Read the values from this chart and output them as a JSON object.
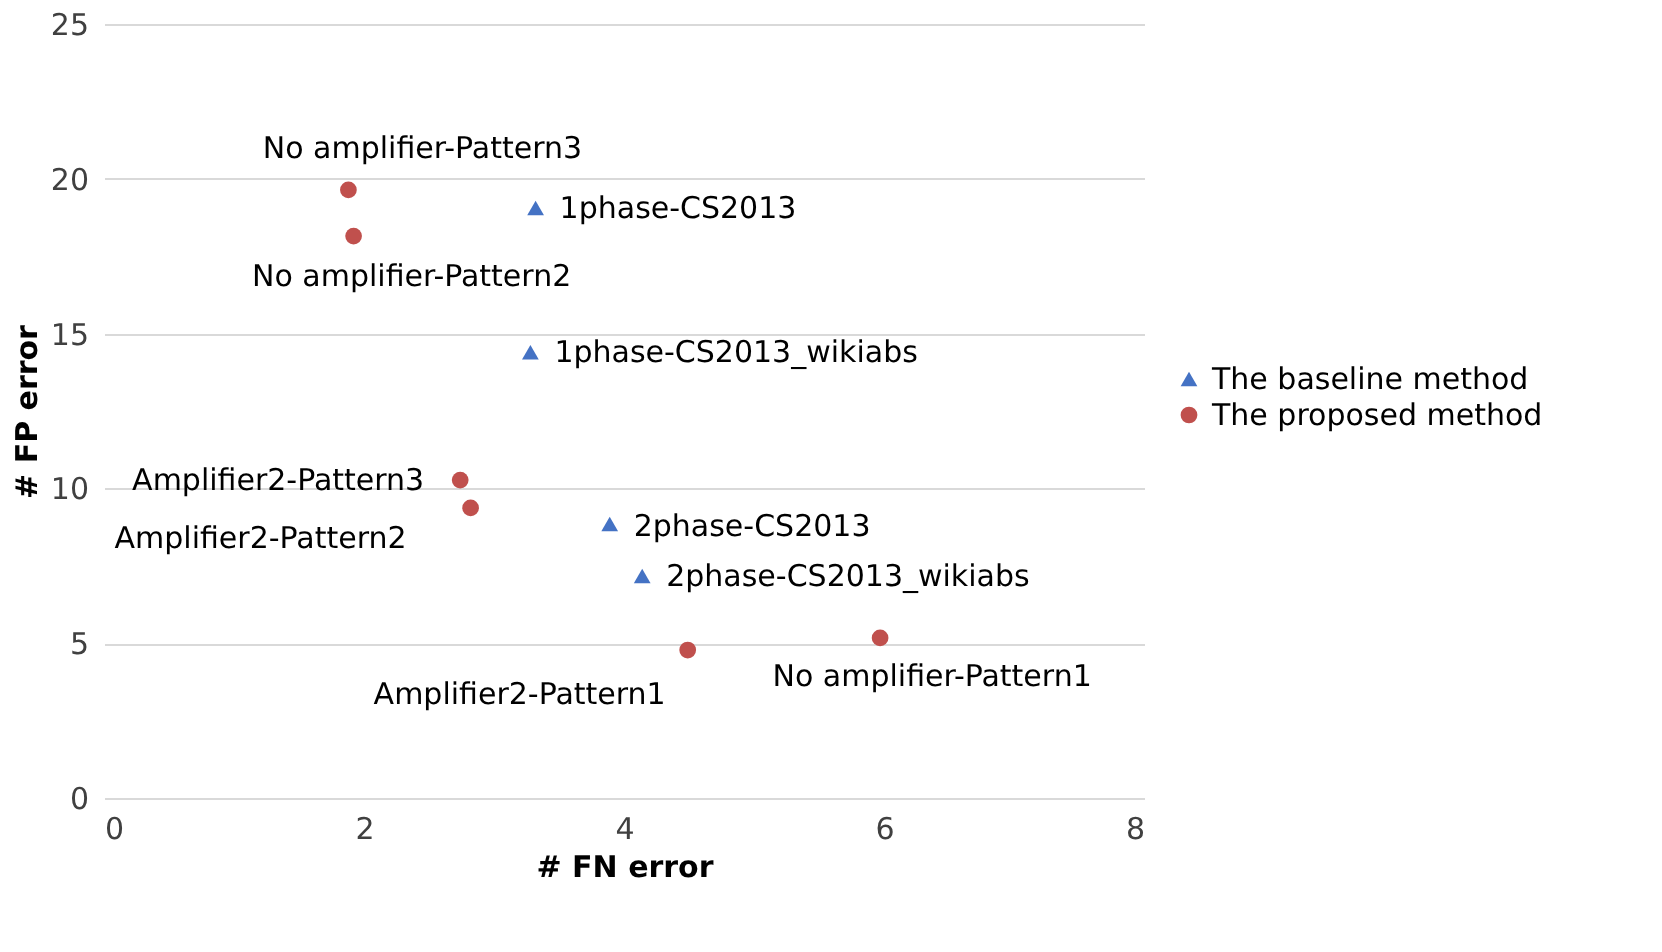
{
  "chart_data": {
    "type": "scatter",
    "xlabel": "# FN error",
    "ylabel": "# FP error",
    "xlim": [
      0,
      8
    ],
    "xticks": [
      0,
      2,
      4,
      6,
      8
    ],
    "ylim": [
      0,
      25
    ],
    "yticks": [
      0,
      5,
      10,
      15,
      20,
      25
    ],
    "grid": "y",
    "legend": "right",
    "series": [
      {
        "name": "The baseline method",
        "color": "#4472c4",
        "marker": "triangle",
        "x": [
          3.32,
          3.28,
          3.89,
          4.14
        ],
        "values": [
          19.06,
          14.4,
          8.85,
          7.17
        ]
      },
      {
        "name": "The proposed method",
        "color": "#c0504d",
        "marker": "circle",
        "x": [
          1.88,
          1.92,
          2.74,
          2.82,
          4.49,
          5.97
        ],
        "values": [
          19.64,
          18.15,
          10.27,
          9.37,
          4.78,
          5.17
        ]
      }
    ],
    "annotations": [
      {
        "text": "No amplifier-Pattern3",
        "x": 1.88,
        "y": 19.64
      },
      {
        "text": "1phase-CS2013",
        "x": 3.32,
        "y": 19.06
      },
      {
        "text": "No amplifier-Pattern2",
        "x": 1.92,
        "y": 18.15
      },
      {
        "text": "1phase-CS2013_wikiabs",
        "x": 3.28,
        "y": 14.4
      },
      {
        "text": "Amplifier2-Pattern3",
        "x": 2.74,
        "y": 10.27
      },
      {
        "text": "Amplifier2-Pattern2",
        "x": 2.82,
        "y": 9.37
      },
      {
        "text": "2phase-CS2013",
        "x": 3.89,
        "y": 8.85
      },
      {
        "text": "2phase-CS2013_wikiabs",
        "x": 4.14,
        "y": 7.17
      },
      {
        "text": "Amplifier2-Pattern1",
        "x": 4.49,
        "y": 4.78
      },
      {
        "text": "No amplifier-Pattern1",
        "x": 5.97,
        "y": 5.17
      }
    ]
  }
}
